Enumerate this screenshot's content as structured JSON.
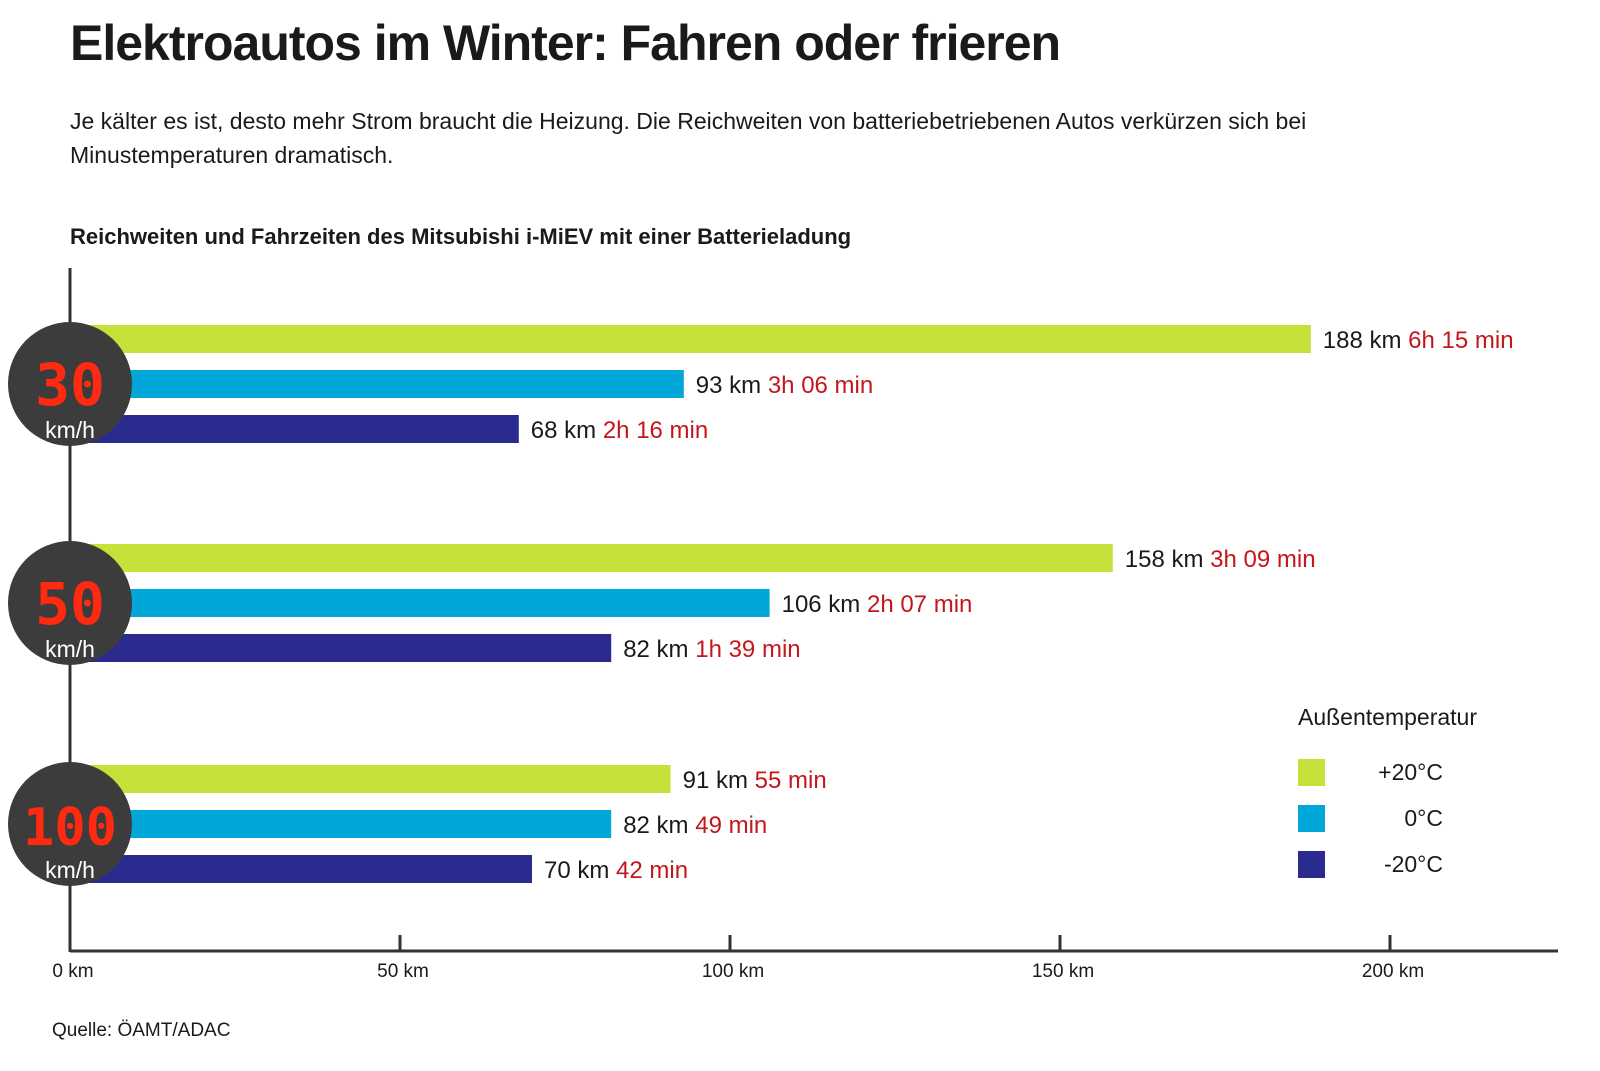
{
  "header": {
    "title": "Elektroautos im Winter: Fahren oder frieren",
    "subtitle": "Je kälter es ist, desto mehr Strom braucht die Heizung. Die Reichweiten von batteriebetriebenen Autos verkürzen sich bei Minustemperaturen dramatisch."
  },
  "source": "Quelle: ÖAMT/ADAC",
  "chart_data": {
    "type": "bar",
    "orientation": "horizontal",
    "title": "Reichweiten und Fahrzeiten des Mitsubishi i-MiEV mit einer Batterieladung",
    "xlabel": "",
    "ylabel": "",
    "xlim": [
      0,
      225
    ],
    "x_ticks": [
      {
        "value": 0,
        "label": "0 km"
      },
      {
        "value": 50,
        "label": "50 km"
      },
      {
        "value": 100,
        "label": "100 km"
      },
      {
        "value": 150,
        "label": "150 km"
      },
      {
        "value": 200,
        "label": "200 km"
      }
    ],
    "legend_title": "Außentemperatur",
    "legend_position": "bottom-right",
    "series": [
      {
        "name": "+20°C",
        "color": "#c8e03a"
      },
      {
        "name": "0°C",
        "color": "#00a7d8"
      },
      {
        "name": "-20°C",
        "color": "#2a2a8f"
      }
    ],
    "groups": [
      {
        "speed": "30",
        "unit": "km/h",
        "bars": [
          {
            "series": "+20°C",
            "value": 188,
            "value_label": "188 km",
            "time": "6h 15 min"
          },
          {
            "series": "0°C",
            "value": 93,
            "value_label": "93 km",
            "time": "3h 06 min"
          },
          {
            "series": "-20°C",
            "value": 68,
            "value_label": "68 km",
            "time": "2h 16 min"
          }
        ]
      },
      {
        "speed": "50",
        "unit": "km/h",
        "bars": [
          {
            "series": "+20°C",
            "value": 158,
            "value_label": "158 km",
            "time": "3h 09 min"
          },
          {
            "series": "0°C",
            "value": 106,
            "value_label": "106 km",
            "time": "2h 07 min"
          },
          {
            "series": "-20°C",
            "value": 82,
            "value_label": "82 km",
            "time": "1h 39 min"
          }
        ]
      },
      {
        "speed": "100",
        "unit": "km/h",
        "bars": [
          {
            "series": "+20°C",
            "value": 91,
            "value_label": "91 km",
            "time": "55 min"
          },
          {
            "series": "0°C",
            "value": 82,
            "value_label": "82 km",
            "time": "49 min"
          },
          {
            "series": "-20°C",
            "value": 70,
            "value_label": "70 km",
            "time": "42 min"
          }
        ]
      }
    ],
    "colors": {
      "time": "#c4161c",
      "speed_digits": "#ff2a10",
      "badge": "#3c3c3c",
      "axis": "#333333"
    }
  }
}
